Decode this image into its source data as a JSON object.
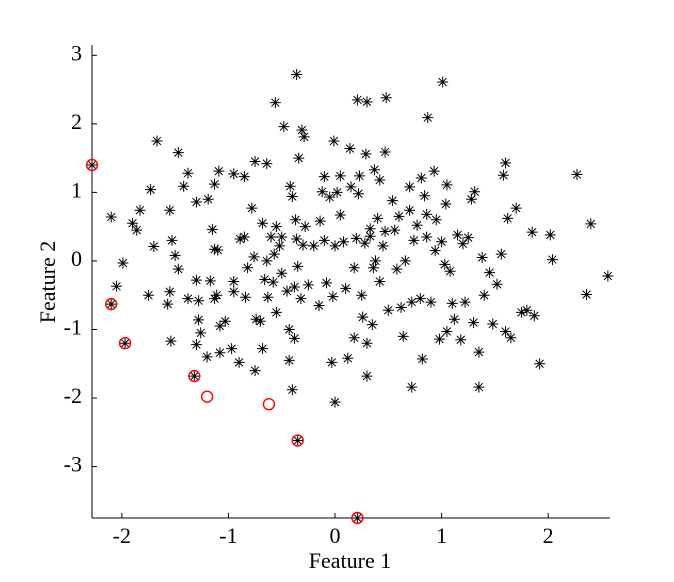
{
  "chart_data": {
    "type": "scatter",
    "xlabel": "Feature 1",
    "ylabel": "Feature 2",
    "xlim": [
      -2.28,
      2.58
    ],
    "ylim": [
      -3.75,
      3.15
    ],
    "xticks": [
      -2,
      -1,
      0,
      1,
      2
    ],
    "yticks": [
      -3,
      -2,
      -1,
      0,
      1,
      2,
      3
    ],
    "grid": false,
    "series": [
      {
        "color": "#000000",
        "marker": "asterisk",
        "x": [
          -0.36,
          1.01,
          -0.56,
          0.21,
          0.3,
          0.48,
          0.87,
          -0.48,
          -0.31,
          -0.29,
          -0.01,
          0.14,
          0.29,
          0.47,
          -1.67,
          -1.47,
          -0.34,
          -2.28,
          -1.38,
          -1.13,
          -1.09,
          -0.95,
          -0.85,
          -0.75,
          -0.64,
          -0.1,
          0.05,
          0.23,
          0.37,
          0.42,
          0.7,
          0.81,
          0.93,
          0.84,
          1.05,
          1.31,
          1.04,
          -2.1,
          -2.05,
          -1.99,
          -1.9,
          -1.83,
          -1.86,
          -1.73,
          -1.7,
          -1.75,
          -1.55,
          -1.53,
          -1.5,
          -1.47,
          -1.57,
          -1.55,
          -1.54,
          -1.38,
          -1.42,
          -1.3,
          -1.3,
          -1.28,
          -1.28,
          -1.26,
          -1.3,
          -1.32,
          -1.2,
          -1.17,
          -1.19,
          -1.15,
          -1.13,
          -1.1,
          -1.11,
          -1.13,
          -1.08,
          -1.08,
          -1.03,
          -0.95,
          -0.95,
          -0.97,
          -0.9,
          -0.89,
          -0.85,
          -0.82,
          -0.84,
          -0.78,
          -0.76,
          -0.74,
          -0.75,
          -0.7,
          -0.68,
          -0.68,
          -0.66,
          -0.63,
          -0.64,
          -0.6,
          -0.58,
          -0.57,
          -0.55,
          -0.55,
          -0.52,
          -0.5,
          -0.5,
          -0.45,
          -0.43,
          -0.43,
          -0.4,
          -0.42,
          -0.37,
          -0.36,
          -0.35,
          -0.38,
          -0.38,
          -0.32,
          -0.3,
          -0.28,
          -0.25,
          -0.2,
          -0.15,
          -0.14,
          -0.12,
          -0.1,
          -0.08,
          -0.05,
          -0.03,
          -0.02,
          0,
          0.02,
          0.05,
          0.08,
          0.1,
          0.12,
          0.15,
          0.18,
          0.18,
          0.2,
          0.22,
          0.25,
          0.26,
          0.28,
          0.3,
          0.3,
          0.33,
          0.33,
          0.35,
          0.36,
          0.38,
          0.4,
          0.42,
          0.45,
          0.47,
          0.5,
          0.54,
          0.56,
          0.58,
          0.6,
          0.62,
          0.64,
          0.66,
          0.7,
          0.72,
          0.74,
          0.72,
          0.77,
          0.8,
          0.82,
          0.86,
          0.86,
          0.9,
          0.94,
          0.95,
          0.98,
          1,
          1.03,
          1.05,
          1.08,
          1.1,
          1.12,
          1.15,
          1.18,
          1.2,
          1.22,
          1.25,
          1.28,
          1.3,
          1.35,
          1.35,
          1.38,
          1.4,
          1.45,
          1.48,
          1.52,
          1.56,
          1.6,
          1.58,
          1.6,
          1.62,
          1.65,
          1.7,
          1.75,
          1.8,
          1.85,
          1.87,
          1.92,
          2.02,
          2.04,
          2.27,
          2.36,
          2.4,
          2.56,
          -2.1,
          -1.97,
          -0.35,
          0.21,
          0,
          -0.4
        ],
        "values": [
          2.72,
          2.61,
          2.31,
          2.35,
          2.32,
          2.38,
          2.09,
          1.96,
          1.91,
          1.81,
          1.75,
          1.64,
          1.56,
          1.59,
          1.75,
          1.58,
          1.5,
          1.4,
          1.28,
          1.12,
          1.31,
          1.27,
          1.23,
          1.45,
          1.42,
          1.23,
          1.24,
          1.24,
          1.33,
          1.18,
          1.08,
          1.21,
          1.31,
          0.95,
          1.11,
          1.01,
          0.83,
          0.64,
          -0.37,
          -0.03,
          0.55,
          0.74,
          0.45,
          1.04,
          0.21,
          -0.5,
          0.74,
          0.3,
          0.08,
          -0.12,
          -0.63,
          -0.45,
          -1.17,
          -0.55,
          1.09,
          0.86,
          -0.28,
          -0.58,
          -0.86,
          -1.05,
          -1.22,
          -1.68,
          -1.4,
          -0.29,
          0.9,
          0.46,
          0.17,
          0.16,
          -0.5,
          -0.55,
          -0.95,
          -1.34,
          -0.88,
          -0.3,
          -0.45,
          -1.28,
          -1.48,
          0.32,
          0.35,
          -0.1,
          -0.53,
          0.77,
          0.06,
          -0.85,
          -1.6,
          -0.88,
          -1.28,
          0.55,
          -0.27,
          -0.53,
          0,
          0.35,
          -0.31,
          0.1,
          0.5,
          -0.75,
          0.22,
          0.35,
          -0.18,
          -0.44,
          -1.0,
          -1.45,
          0.94,
          1.09,
          0.6,
          0.32,
          -0.08,
          -0.38,
          -1.13,
          -0.55,
          0.23,
          0.5,
          -0.35,
          0.22,
          -0.65,
          0.58,
          1.01,
          0.3,
          -0.32,
          0.93,
          -1.48,
          -0.52,
          0.22,
          1.0,
          0.67,
          0.28,
          -0.4,
          -1.42,
          1.08,
          -0.1,
          -1.12,
          0.33,
          0.98,
          -0.5,
          -0.82,
          0.26,
          -1.2,
          -1.68,
          0.47,
          0.36,
          -0.93,
          -0.1,
          0,
          0.62,
          -0.3,
          0.22,
          0.43,
          -0.72,
          0.88,
          0.45,
          -0.12,
          0.65,
          -0.68,
          -1.1,
          0,
          0.74,
          -0.6,
          0.3,
          -1.84,
          0.52,
          -0.55,
          -1.43,
          0.35,
          0.68,
          -0.6,
          0.15,
          0.6,
          -1.14,
          0.28,
          -0.05,
          -1.03,
          -0.15,
          -0.62,
          -0.85,
          0.38,
          -1.15,
          0.25,
          -0.6,
          0.34,
          0.9,
          -0.9,
          -1.33,
          -1.84,
          0.05,
          -0.5,
          -0.17,
          -0.92,
          -0.34,
          0.1,
          1.43,
          1.25,
          -1.03,
          0.62,
          -1.12,
          0.77,
          -0.75,
          -0.72,
          0.42,
          -0.8,
          -1.5,
          0.38,
          0.02,
          1.26,
          -0.49,
          0.54,
          -0.22,
          -0.63,
          -1.2,
          -2.62,
          -3.75,
          -2.06,
          -1.88
        ]
      },
      {
        "color": "#ff0000",
        "marker": "circle",
        "x": [
          -2.28,
          -2.1,
          -1.97,
          -1.32,
          -1.2,
          -0.62,
          -0.35,
          0.21
        ],
        "values": [
          1.4,
          -0.63,
          -1.2,
          -1.68,
          -1.98,
          -2.09,
          -2.62,
          -3.75
        ]
      }
    ]
  }
}
